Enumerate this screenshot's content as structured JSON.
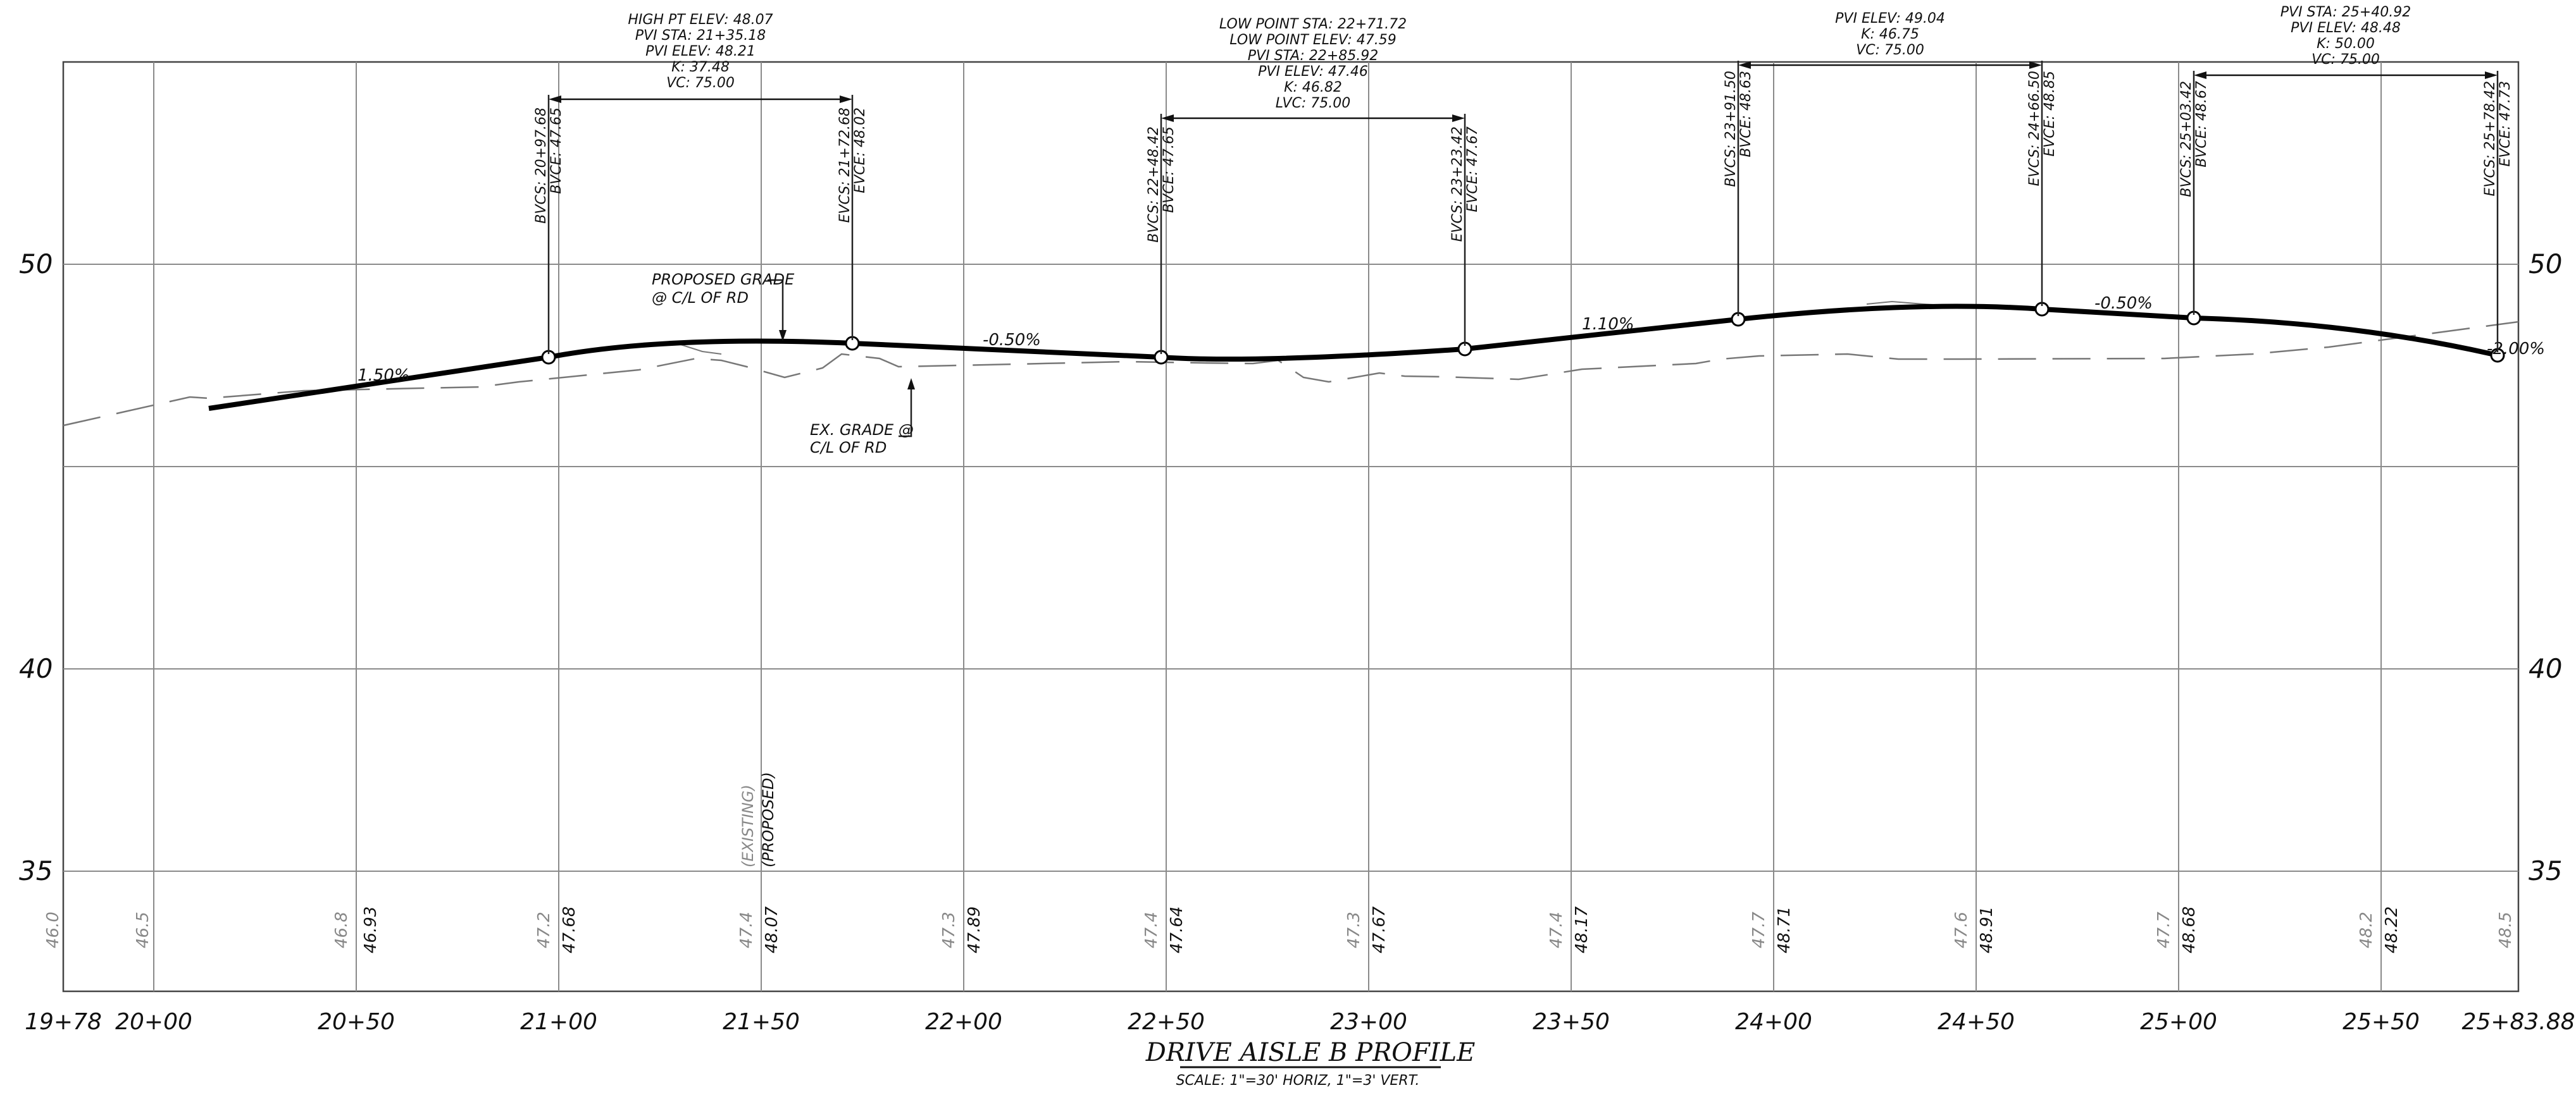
{
  "title": "DRIVE AISLE B PROFILE",
  "scale_note": "SCALE: 1\"=30' HORIZ, 1\"=3' VERT.",
  "station_labels": [
    "19+78",
    "20+00",
    "20+50",
    "21+00",
    "21+50",
    "22+00",
    "22+50",
    "23+00",
    "23+50",
    "24+00",
    "24+50",
    "25+00",
    "25+50",
    "25+83.88"
  ],
  "elevation_labels": [
    "50",
    "40",
    "35"
  ],
  "bottom_existing": [
    "46.0",
    "46.5",
    "46.8",
    "47.2",
    "47.4",
    "47.3",
    "47.4",
    "47.3",
    "47.4",
    "47.7",
    "47.6",
    "47.7",
    "48.2",
    "48.5"
  ],
  "bottom_proposed": [
    "46.93",
    "47.68",
    "48.07",
    "47.89",
    "47.64",
    "47.67",
    "48.17",
    "48.71",
    "48.91",
    "48.68",
    "48.22"
  ],
  "bottom_headers": {
    "existing": "(EXISTING)",
    "proposed": "(PROPOSED)"
  },
  "curves": [
    {
      "info": [
        "HIGH PT ELEV:  48.07",
        "PVI STA: 21+35.18",
        "PVI ELEV: 48.21",
        "K: 37.48",
        "VC: 75.00"
      ],
      "bvc": [
        "BVCS:  20+97.68",
        "BVCE:  47.65"
      ],
      "evc": [
        "EVCS:  21+72.68",
        "EVCE:  48.02"
      ]
    },
    {
      "info": [
        "LOW POINT STA:  22+71.72",
        "LOW POINT ELEV:  47.59",
        "PVI STA: 22+85.92",
        "PVI ELEV: 47.46",
        "K: 46.82",
        "LVC: 75.00"
      ],
      "bvc": [
        "BVCS:  22+48.42",
        "BVCE:  47.65"
      ],
      "evc": [
        "EVCS:  23+23.42",
        "EVCE:  47.67"
      ]
    },
    {
      "info": [
        "PVI ELEV: 49.04",
        "K: 46.75",
        "VC: 75.00"
      ],
      "bvc": [
        "BVCS:  23+91.50",
        "BVCE:  48.63"
      ],
      "evc": [
        "EVCS:  24+66.50",
        "EVCE:  48.85"
      ]
    },
    {
      "info": [
        "PVI STA: 25+40.92",
        "PVI ELEV: 48.48",
        "K: 50.00",
        "VC: 75.00"
      ],
      "bvc": [
        "BVCS:  25+03.42",
        "BVCE:  48.67"
      ],
      "evc": [
        "EVCS:  25+78.42",
        "EVCE:  47.73"
      ]
    }
  ],
  "grades": [
    "1.50%",
    "-0.50%",
    "1.10%",
    "-0.50%",
    "-2.00%"
  ],
  "annotations": {
    "proposed": [
      "PROPOSED GRADE",
      "@ C/L OF RD"
    ],
    "existing": [
      "EX. GRADE @",
      "C/L OF RD"
    ]
  }
}
